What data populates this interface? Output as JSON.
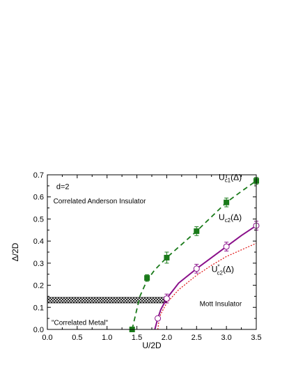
{
  "chart_data": {
    "type": "scatter",
    "xlabel": "U/2D",
    "ylabel": "Δ/2D",
    "xlim": [
      0.0,
      3.5
    ],
    "ylim": [
      0.0,
      0.7
    ],
    "x_ticks": [
      0.0,
      0.5,
      1.0,
      1.5,
      2.0,
      2.5,
      3.0,
      3.5
    ],
    "y_ticks": [
      0.0,
      0.1,
      0.2,
      0.3,
      0.4,
      0.5,
      0.6,
      0.7
    ],
    "x_tick_labels": [
      "0.0",
      "0.5",
      "1.0",
      "1.5",
      "2.0",
      "2.5",
      "3.0",
      "3.5"
    ],
    "y_tick_labels": [
      "0.0",
      "0.1",
      "0.2",
      "0.3",
      "0.4",
      "0.5",
      "0.6",
      "0.7"
    ],
    "grid": false,
    "series": [
      {
        "name": "U_c1(Δ)",
        "color": "#1a7a1a",
        "marker": "square",
        "line": "dashed",
        "x": [
          1.42,
          1.67,
          2.0,
          2.5,
          3.0,
          3.5
        ],
        "y": [
          0.0,
          0.233,
          0.325,
          0.445,
          0.575,
          0.673
        ],
        "err": [
          0.0,
          0.015,
          0.025,
          0.02,
          0.02,
          0.015
        ],
        "fit_x": [
          1.42,
          1.55,
          1.67,
          1.8,
          2.0,
          2.25,
          2.5,
          2.75,
          3.0,
          3.25,
          3.5
        ],
        "fit_y": [
          0.0,
          0.15,
          0.222,
          0.27,
          0.325,
          0.385,
          0.445,
          0.51,
          0.575,
          0.625,
          0.673
        ]
      },
      {
        "name": "U_c2(Δ)",
        "color": "#8a108a",
        "marker": "open-circle",
        "line": "solid",
        "x": [
          1.85,
          2.0,
          2.5,
          3.0,
          3.5
        ],
        "y": [
          0.05,
          0.14,
          0.275,
          0.375,
          0.47
        ],
        "err": [
          0.0,
          0.02,
          0.02,
          0.02,
          0.02
        ],
        "fit_x": [
          1.8,
          1.82,
          1.85,
          1.9,
          2.0,
          2.2,
          2.5,
          2.75,
          3.0,
          3.25,
          3.5
        ],
        "fit_y": [
          0.0,
          0.02,
          0.05,
          0.09,
          0.14,
          0.21,
          0.275,
          0.325,
          0.375,
          0.425,
          0.47
        ]
      },
      {
        "name": "U*_c2(Δ)",
        "color": "#e01010",
        "marker": "none",
        "line": "dotted",
        "fit_x": [
          1.85,
          1.87,
          1.9,
          2.0,
          2.2,
          2.5,
          2.75,
          3.0,
          3.25,
          3.5
        ],
        "fit_y": [
          0.0,
          0.04,
          0.07,
          0.12,
          0.18,
          0.245,
          0.29,
          0.33,
          0.36,
          0.39
        ]
      }
    ],
    "band": {
      "x": [
        0.0,
        2.0
      ],
      "y": [
        0.12,
        0.145
      ],
      "pattern": "crosshatch"
    },
    "annotations": {
      "d": "d=2",
      "anderson": "Correlated Anderson Insulator",
      "mott": "Mott Insulator",
      "metal": "\"Correlated Metal\"",
      "uc1": {
        "base": "U",
        "sub": "c1",
        "rest": "(Δ)"
      },
      "uc2": {
        "base": "U",
        "sub": "c2",
        "rest": "(Δ)"
      },
      "uc2star": {
        "base": "U",
        "sup": "*",
        "sub": "c2",
        "rest": "(Δ)"
      }
    }
  }
}
